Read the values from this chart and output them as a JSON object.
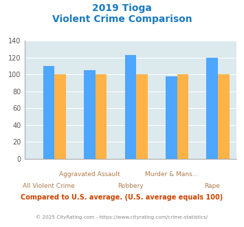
{
  "title_line1": "2019 Tioga",
  "title_line2": "Violent Crime Comparison",
  "categories": [
    "All Violent Crime",
    "Aggravated Assault",
    "Robbery",
    "Murder & Mans...",
    "Rape"
  ],
  "tioga": [
    0,
    0,
    0,
    0,
    0
  ],
  "texas": [
    110,
    105,
    123,
    98,
    120
  ],
  "national": [
    100,
    100,
    100,
    100,
    100
  ],
  "colors": {
    "tioga": "#7dc34a",
    "texas": "#4da6ff",
    "national": "#ffb347"
  },
  "ylim": [
    0,
    140
  ],
  "yticks": [
    0,
    20,
    40,
    60,
    80,
    100,
    120,
    140
  ],
  "bg_color": "#dce9ed",
  "title_color": "#1a7abf",
  "label_color": "#b07a4a",
  "footer_text": "Compared to U.S. average. (U.S. average equals 100)",
  "copyright_text": "© 2025 CityRating.com - https://www.cityrating.com/crime-statistics/",
  "footer_color": "#cc4400",
  "copyright_color": "#888888"
}
